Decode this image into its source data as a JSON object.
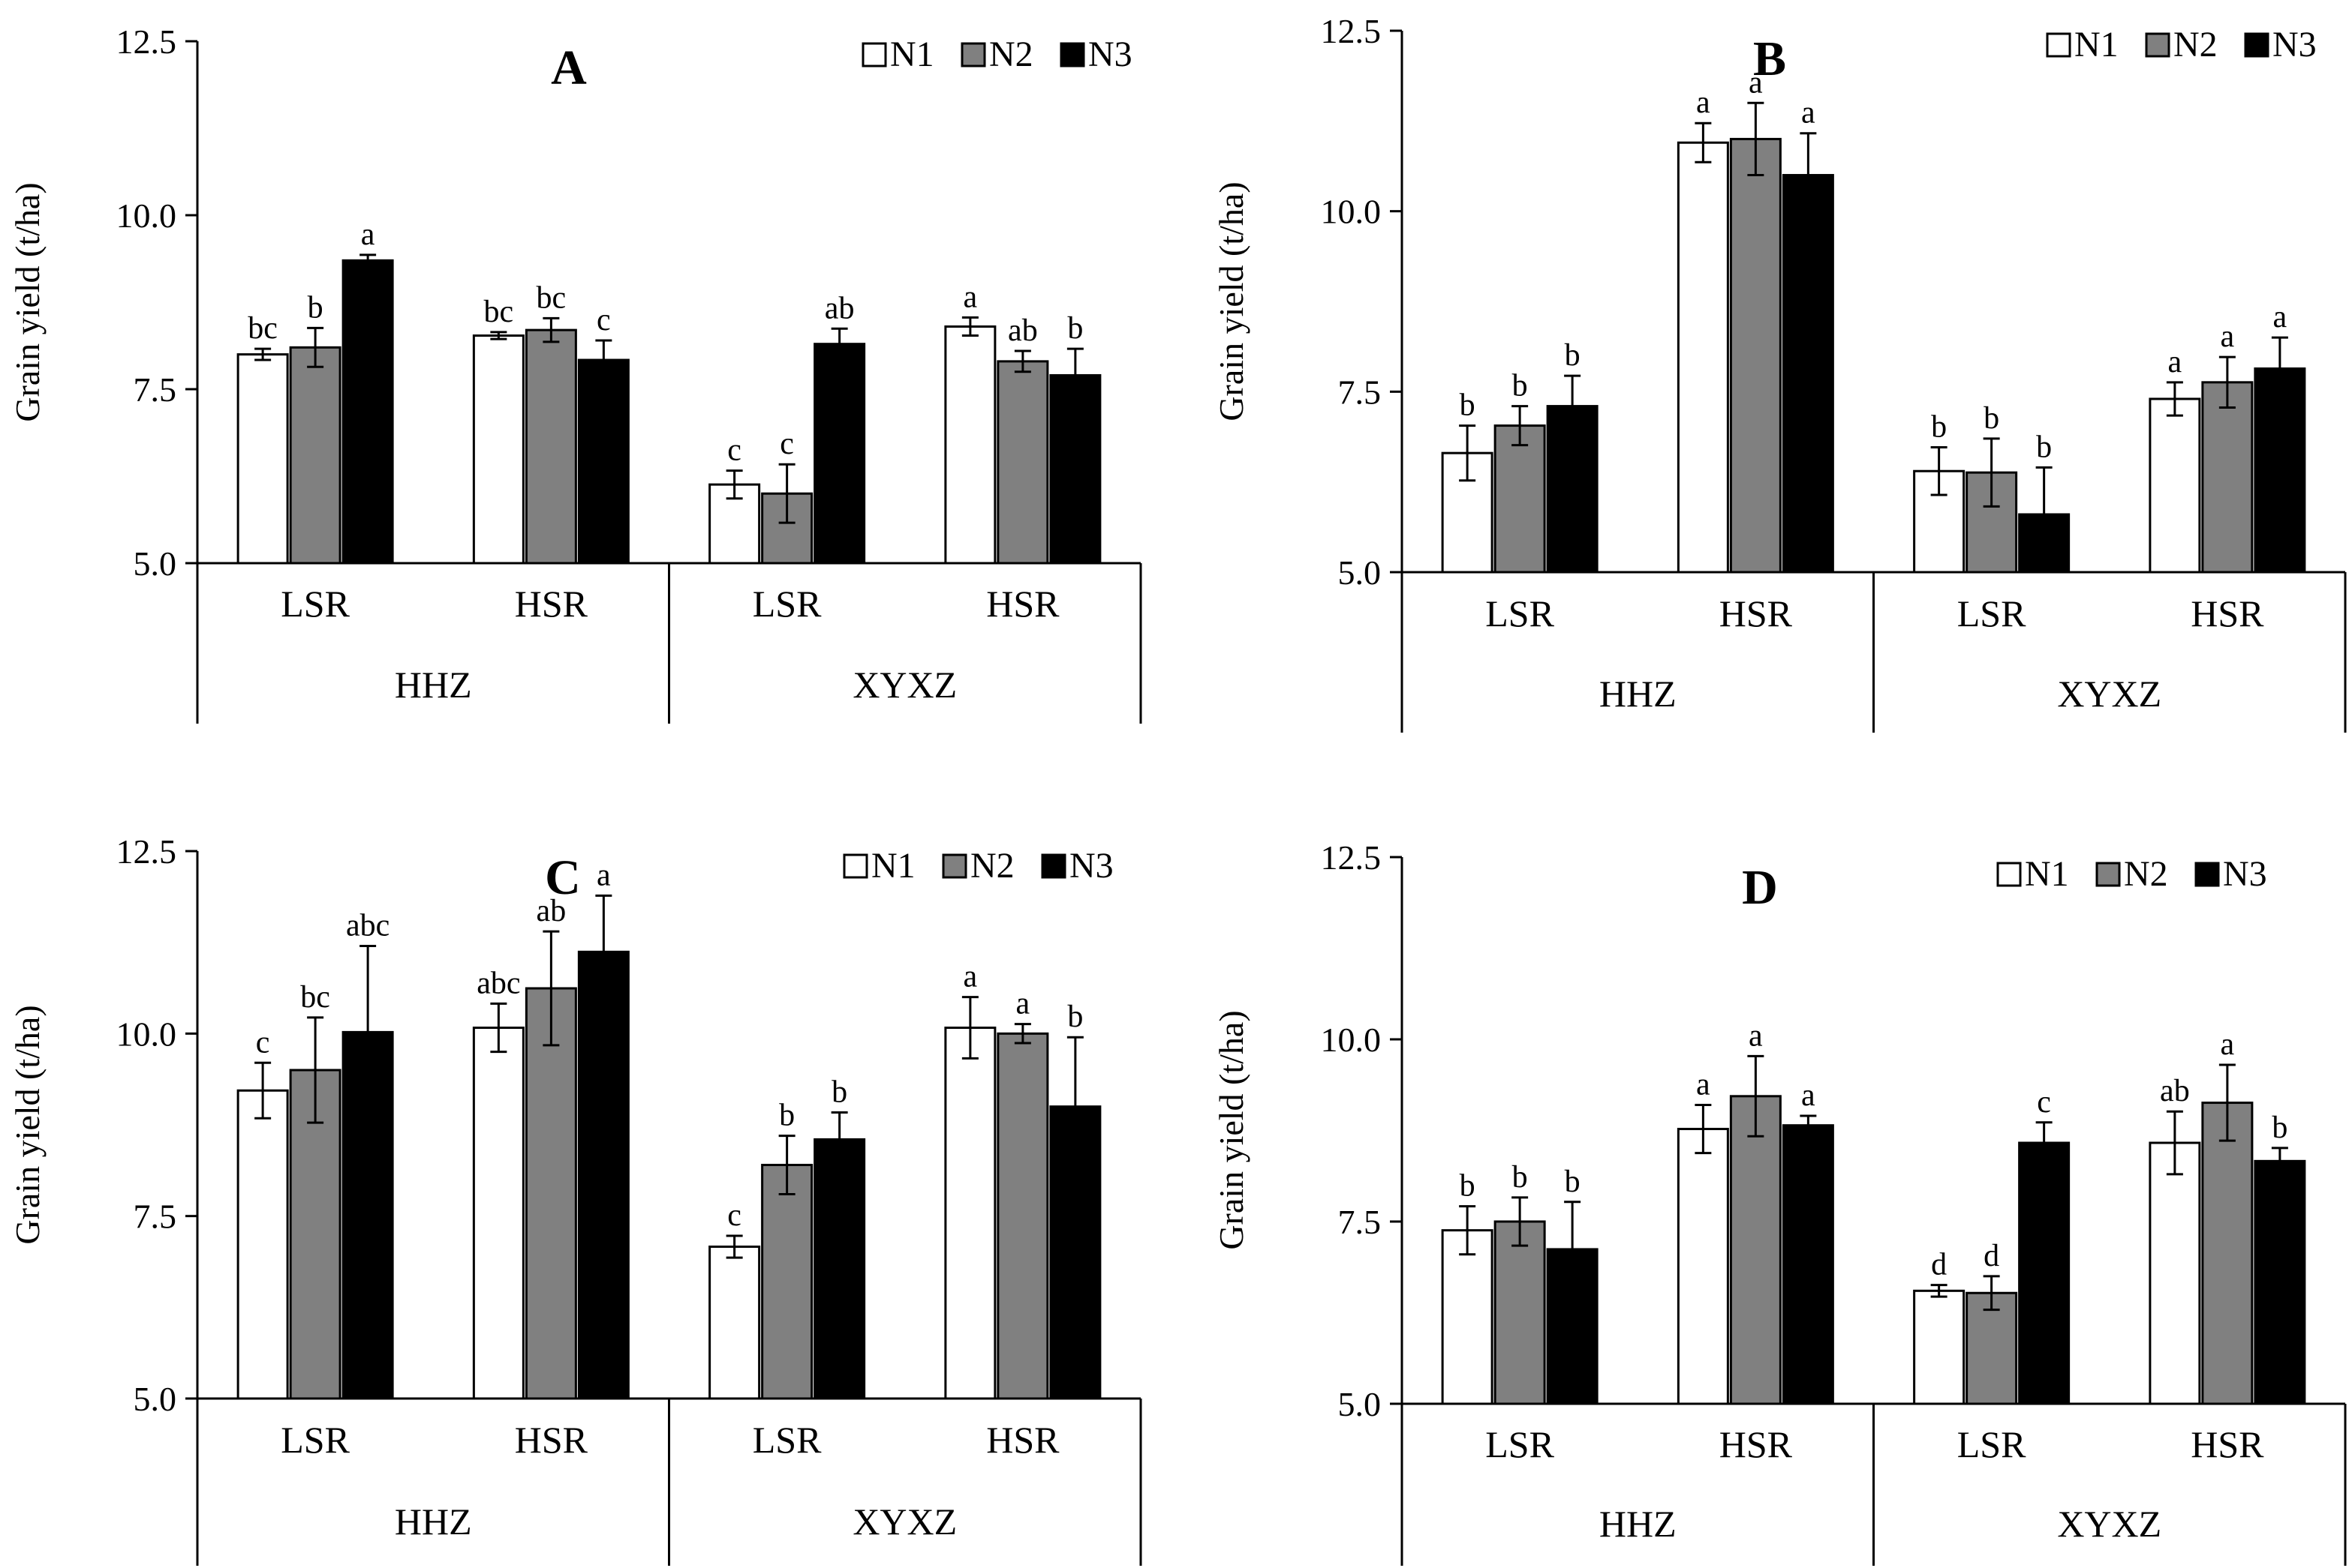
{
  "legend": [
    {
      "label": "N1",
      "color": "#ffffff"
    },
    {
      "label": "N2",
      "color": "#808080"
    },
    {
      "label": "N3",
      "color": "#000000"
    }
  ],
  "chart_data": [
    {
      "type": "bar",
      "title": "A",
      "ylabel": "Grain yield (t/ha)",
      "ylim": [
        5.0,
        12.5
      ],
      "yticks": [
        "5.0",
        "7.5",
        "10.0",
        "12.5"
      ],
      "groups": [
        "HHZ",
        "XYXZ"
      ],
      "categories": [
        "LSR",
        "HSR",
        "LSR",
        "HSR"
      ],
      "series": [
        {
          "name": "N1",
          "values": [
            8.0,
            8.27,
            6.13,
            8.4
          ],
          "errors": [
            0.08,
            0.05,
            0.2,
            0.13
          ],
          "letters": [
            "bc",
            "bc",
            "c",
            "a"
          ]
        },
        {
          "name": "N2",
          "values": [
            8.1,
            8.35,
            6.0,
            7.9
          ],
          "errors": [
            0.28,
            0.17,
            0.42,
            0.15
          ],
          "letters": [
            "b",
            "bc",
            "c",
            "ab"
          ]
        },
        {
          "name": "N3",
          "values": [
            9.35,
            7.92,
            8.15,
            7.7
          ],
          "errors": [
            0.08,
            0.28,
            0.22,
            0.38
          ],
          "letters": [
            "a",
            "c",
            "ab",
            "b"
          ]
        }
      ]
    },
    {
      "type": "bar",
      "title": "B",
      "ylabel": "Grain yield (t/ha)",
      "ylim": [
        5.0,
        12.5
      ],
      "yticks": [
        "5.0",
        "7.5",
        "10.0",
        "12.5"
      ],
      "groups": [
        "HHZ",
        "XYXZ"
      ],
      "categories": [
        "LSR",
        "HSR",
        "LSR",
        "HSR"
      ],
      "series": [
        {
          "name": "N1",
          "values": [
            6.65,
            10.95,
            6.4,
            7.4
          ],
          "errors": [
            0.38,
            0.27,
            0.33,
            0.23
          ],
          "letters": [
            "b",
            "a",
            "b",
            "a"
          ]
        },
        {
          "name": "N2",
          "values": [
            7.03,
            11.0,
            6.38,
            7.63
          ],
          "errors": [
            0.27,
            0.5,
            0.47,
            0.35
          ],
          "letters": [
            "b",
            "a",
            "b",
            "a"
          ]
        },
        {
          "name": "N3",
          "values": [
            7.3,
            10.5,
            5.8,
            7.82
          ],
          "errors": [
            0.42,
            0.58,
            0.65,
            0.43
          ],
          "letters": [
            "b",
            "a",
            "b",
            "a"
          ]
        }
      ]
    },
    {
      "type": "bar",
      "title": "C",
      "ylabel": "Grain yield (t/ha)",
      "ylim": [
        5.0,
        12.5
      ],
      "yticks": [
        "5.0",
        "7.5",
        "10.0",
        "12.5"
      ],
      "groups": [
        "HHZ",
        "XYXZ"
      ],
      "categories": [
        "LSR",
        "HSR",
        "LSR",
        "HSR"
      ],
      "series": [
        {
          "name": "N1",
          "values": [
            9.22,
            10.08,
            7.08,
            10.08
          ],
          "errors": [
            0.38,
            0.33,
            0.15,
            0.42
          ],
          "letters": [
            "c",
            "abc",
            "c",
            "a"
          ]
        },
        {
          "name": "N2",
          "values": [
            9.5,
            10.62,
            8.2,
            10.0
          ],
          "errors": [
            0.72,
            0.78,
            0.4,
            0.13
          ],
          "letters": [
            "bc",
            "ab",
            "b",
            "a"
          ]
        },
        {
          "name": "N3",
          "values": [
            10.02,
            11.12,
            8.55,
            9.0
          ],
          "errors": [
            1.18,
            0.77,
            0.37,
            0.95
          ],
          "letters": [
            "abc",
            "a",
            "b",
            "b"
          ]
        }
      ]
    },
    {
      "type": "bar",
      "title": "D",
      "ylabel": "Grain yield (t/ha)",
      "ylim": [
        5.0,
        12.5
      ],
      "yticks": [
        "5.0",
        "7.5",
        "10.0",
        "12.5"
      ],
      "groups": [
        "HHZ",
        "XYXZ"
      ],
      "categories": [
        "LSR",
        "HSR",
        "LSR",
        "HSR"
      ],
      "series": [
        {
          "name": "N1",
          "values": [
            7.38,
            8.77,
            6.55,
            8.58
          ],
          "errors": [
            0.33,
            0.33,
            0.08,
            0.43
          ],
          "letters": [
            "b",
            "a",
            "d",
            "ab"
          ]
        },
        {
          "name": "N2",
          "values": [
            7.5,
            9.22,
            6.52,
            9.13
          ],
          "errors": [
            0.33,
            0.55,
            0.23,
            0.52
          ],
          "letters": [
            "b",
            "a",
            "d",
            "a"
          ]
        },
        {
          "name": "N3",
          "values": [
            7.12,
            8.82,
            8.58,
            8.33
          ],
          "errors": [
            0.65,
            0.13,
            0.28,
            0.18
          ],
          "letters": [
            "b",
            "a",
            "c",
            "b"
          ]
        }
      ]
    }
  ]
}
